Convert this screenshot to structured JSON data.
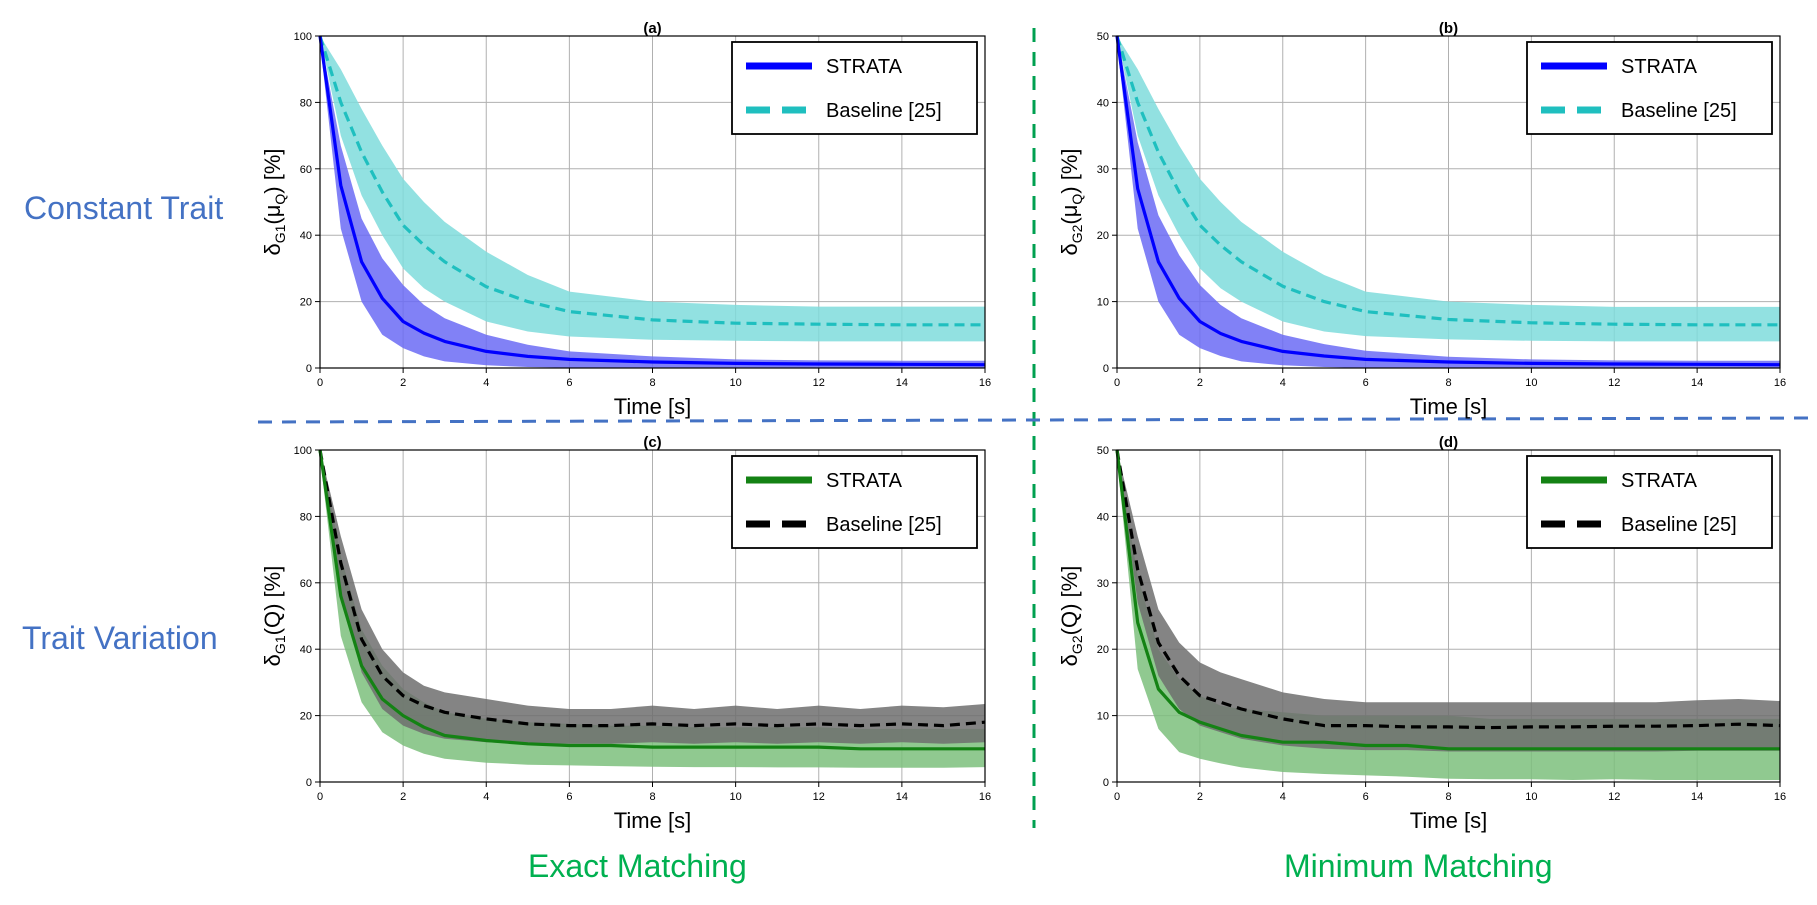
{
  "row_labels": [
    "Constant Trait",
    "Trait Variation"
  ],
  "column_labels": [
    "Exact Matching",
    "Minimum Matching"
  ],
  "colors": {
    "strata_blue": "#0000ff",
    "strata_blue_band": "#6b6bf5",
    "baseline_cyan": "#1fbfbf",
    "baseline_cyan_band": "#7fdcdc",
    "strata_green": "#148214",
    "strata_green_band": "#7dbf7d",
    "baseline_black": "#000000",
    "baseline_black_band": "#6e6e6e",
    "divider_green": "#00a050",
    "divider_blue": "#4472c4",
    "row_label": "#4472c4",
    "column_label": "#00b050"
  },
  "chart_data": [
    {
      "id": "a",
      "type": "line",
      "title": "(a)",
      "xlabel": "Time [s]",
      "ylabel": "δ_{G1}(μ_Q) [%]",
      "ylabel_parts": {
        "delta": "δ",
        "sub": "G1",
        "arg": "(μ",
        "arg_sub": "Q",
        "close": ")",
        "unit": " [%]"
      },
      "xlim": [
        0,
        16
      ],
      "ylim": [
        0,
        100
      ],
      "xticks": [
        0,
        2,
        4,
        6,
        8,
        10,
        12,
        14,
        16
      ],
      "yticks": [
        0,
        20,
        40,
        60,
        80,
        100
      ],
      "grid": true,
      "legend": "top-right",
      "x": [
        0,
        0.5,
        1,
        1.5,
        2,
        2.5,
        3,
        4,
        5,
        6,
        8,
        10,
        12,
        14,
        16
      ],
      "series": [
        {
          "name": "STRATA",
          "style": "solid",
          "color_key": "strata_blue",
          "band_key": "strata_blue_band",
          "mean": [
            100,
            55,
            32,
            21,
            14,
            10.5,
            8,
            5,
            3.5,
            2.6,
            1.8,
            1.4,
            1.2,
            1.1,
            1.0
          ],
          "lower": [
            98,
            42,
            20,
            10,
            6,
            3.5,
            2,
            0.8,
            0.3,
            0.1,
            0,
            0,
            0,
            0,
            0
          ],
          "upper": [
            100,
            67,
            45,
            33,
            25,
            19,
            15,
            10,
            7,
            5,
            3.5,
            2.6,
            2.3,
            2.2,
            2.2
          ]
        },
        {
          "name": "Baseline [25]",
          "style": "dashed",
          "color_key": "baseline_cyan",
          "band_key": "baseline_cyan_band",
          "mean": [
            100,
            80,
            65,
            53,
            43,
            37,
            32,
            24.5,
            20,
            17,
            14.5,
            13.5,
            13.2,
            13,
            13
          ],
          "lower": [
            100,
            70,
            52,
            40,
            30,
            24,
            20,
            14,
            11,
            9.5,
            8.5,
            8.2,
            8,
            8,
            8
          ],
          "upper": [
            100,
            90,
            78,
            67,
            57,
            50,
            44,
            35,
            28,
            23,
            20,
            19,
            18.5,
            18.5,
            18.5
          ]
        }
      ]
    },
    {
      "id": "b",
      "type": "line",
      "title": "(b)",
      "xlabel": "Time [s]",
      "ylabel": "δ_{G2}(μ_Q) [%]",
      "ylabel_parts": {
        "delta": "δ",
        "sub": "G2",
        "arg": "(μ",
        "arg_sub": "Q",
        "close": ")",
        "unit": " [%]"
      },
      "xlim": [
        0,
        16
      ],
      "ylim": [
        0,
        50
      ],
      "xticks": [
        0,
        2,
        4,
        6,
        8,
        10,
        12,
        14,
        16
      ],
      "yticks": [
        0,
        10,
        20,
        30,
        40,
        50
      ],
      "grid": true,
      "legend": "top-right",
      "x": [
        0,
        0.5,
        1,
        1.5,
        2,
        2.5,
        3,
        4,
        5,
        6,
        8,
        10,
        12,
        14,
        16
      ],
      "series": [
        {
          "name": "STRATA",
          "style": "solid",
          "color_key": "strata_blue",
          "band_key": "strata_blue_band",
          "mean": [
            50,
            27,
            16,
            10.5,
            7,
            5.2,
            4,
            2.5,
            1.8,
            1.3,
            0.9,
            0.7,
            0.6,
            0.55,
            0.5
          ],
          "lower": [
            49,
            21,
            10,
            5,
            3,
            1.8,
            1,
            0.4,
            0.15,
            0,
            0,
            0,
            0,
            0,
            0
          ],
          "upper": [
            50,
            34,
            23,
            17,
            12.5,
            9.5,
            7.5,
            5,
            3.6,
            2.6,
            1.7,
            1.3,
            1.15,
            1.1,
            1.1
          ]
        },
        {
          "name": "Baseline [25]",
          "style": "dashed",
          "color_key": "baseline_cyan",
          "band_key": "baseline_cyan_band",
          "mean": [
            50,
            40,
            32.5,
            26.5,
            21.5,
            18.5,
            16,
            12.3,
            10,
            8.5,
            7.3,
            6.8,
            6.6,
            6.5,
            6.5
          ],
          "lower": [
            50,
            35,
            26,
            20,
            15,
            12,
            10,
            7,
            5.5,
            4.8,
            4.3,
            4.1,
            4,
            4,
            4
          ],
          "upper": [
            50,
            45,
            39,
            33.5,
            28.5,
            25,
            22,
            17.5,
            14,
            11.5,
            10,
            9.5,
            9.2,
            9.2,
            9.2
          ]
        }
      ]
    },
    {
      "id": "c",
      "type": "line",
      "title": "(c)",
      "xlabel": "Time [s]",
      "ylabel": "δ_{G1}(Q) [%]",
      "ylabel_parts": {
        "delta": "δ",
        "sub": "G1",
        "arg": "(Q",
        "arg_sub": "",
        "close": ")",
        "unit": " [%]"
      },
      "xlim": [
        0,
        16
      ],
      "ylim": [
        0,
        100
      ],
      "xticks": [
        0,
        2,
        4,
        6,
        8,
        10,
        12,
        14,
        16
      ],
      "yticks": [
        0,
        20,
        40,
        60,
        80,
        100
      ],
      "grid": true,
      "legend": "top-right",
      "x": [
        0,
        0.5,
        1,
        1.5,
        2,
        2.5,
        3,
        4,
        5,
        6,
        7,
        8,
        9,
        10,
        11,
        12,
        13,
        14,
        15,
        16
      ],
      "series": [
        {
          "name": "STRATA",
          "style": "solid",
          "color_key": "strata_green",
          "band_key": "strata_green_band",
          "mean": [
            100,
            56,
            35,
            25,
            20,
            16.5,
            14,
            12.5,
            11.5,
            11,
            11,
            10.5,
            10.5,
            10.5,
            10.5,
            10.5,
            10,
            10,
            10,
            10
          ],
          "lower": [
            98,
            44,
            24,
            15,
            11,
            8.5,
            7,
            5.8,
            5.2,
            5,
            4.8,
            4.6,
            4.5,
            4.5,
            4.4,
            4.4,
            4.3,
            4.3,
            4.3,
            4.5
          ],
          "upper": [
            100,
            68,
            46,
            35,
            28,
            24,
            21,
            19,
            18,
            17.5,
            17,
            17,
            16.5,
            16.5,
            16.5,
            16.5,
            16,
            16,
            16,
            16
          ]
        },
        {
          "name": "Baseline [25]",
          "style": "dashed",
          "color_key": "baseline_black",
          "band_key": "baseline_black_band",
          "mean": [
            100,
            66,
            43,
            32,
            26,
            23,
            21,
            19,
            17.5,
            17,
            17,
            17.5,
            17,
            17.5,
            17,
            17.5,
            17,
            17.5,
            17,
            18
          ],
          "lower": [
            100,
            57,
            33,
            22,
            17,
            14.5,
            13,
            12,
            11.5,
            11.5,
            11.5,
            12,
            11.5,
            12,
            11.5,
            12,
            11.5,
            12,
            11.5,
            12
          ],
          "upper": [
            100,
            74,
            52,
            40,
            33,
            29,
            27,
            25,
            23,
            22,
            22,
            23,
            22,
            23,
            22,
            23,
            22,
            23,
            22.5,
            23.5
          ]
        }
      ]
    },
    {
      "id": "d",
      "type": "line",
      "title": "(d)",
      "xlabel": "Time [s]",
      "ylabel": "δ_{G2}(Q) [%]",
      "ylabel_parts": {
        "delta": "δ",
        "sub": "G2",
        "arg": "(Q",
        "arg_sub": "",
        "close": ")",
        "unit": " [%]"
      },
      "xlim": [
        0,
        16
      ],
      "ylim": [
        0,
        50
      ],
      "xticks": [
        0,
        2,
        4,
        6,
        8,
        10,
        12,
        14,
        16
      ],
      "yticks": [
        0,
        10,
        20,
        30,
        40,
        50
      ],
      "grid": true,
      "legend": "top-right",
      "x": [
        0,
        0.5,
        1,
        1.5,
        2,
        2.5,
        3,
        4,
        5,
        6,
        7,
        8,
        9,
        10,
        11,
        12,
        13,
        14,
        15,
        16
      ],
      "series": [
        {
          "name": "STRATA",
          "style": "solid",
          "color_key": "strata_green",
          "band_key": "strata_green_band",
          "mean": [
            50,
            24,
            14,
            10.5,
            9,
            8,
            7,
            6,
            6,
            5.5,
            5.5,
            5,
            5,
            5,
            5,
            5,
            5,
            5,
            5,
            5
          ],
          "lower": [
            49,
            17,
            8,
            4.5,
            3.5,
            2.8,
            2.2,
            1.5,
            1.2,
            1,
            0.8,
            0.5,
            0.4,
            0.4,
            0.3,
            0.4,
            0.3,
            0.3,
            0.3,
            0.3
          ],
          "upper": [
            50,
            31,
            20,
            15.5,
            13,
            11.5,
            11,
            10.5,
            10,
            10,
            10,
            10,
            9.5,
            9.5,
            9.5,
            9.5,
            9.5,
            9.5,
            9.5,
            9.5
          ]
        },
        {
          "name": "Baseline [25]",
          "style": "dashed",
          "color_key": "baseline_black",
          "band_key": "baseline_black_band",
          "mean": [
            50,
            32,
            21,
            16,
            13,
            12,
            11,
            9.5,
            8.5,
            8.5,
            8.3,
            8.3,
            8.2,
            8.3,
            8.3,
            8.4,
            8.4,
            8.5,
            8.7,
            8.5
          ],
          "lower": [
            50,
            27,
            16,
            11,
            8.5,
            7.5,
            6.5,
            5.5,
            5,
            4.8,
            4.8,
            4.6,
            4.6,
            4.6,
            4.6,
            4.6,
            4.6,
            4.7,
            4.7,
            4.7
          ],
          "upper": [
            50,
            37,
            26,
            21,
            18,
            16.5,
            15.5,
            13.5,
            12.5,
            12,
            12,
            12,
            12,
            12,
            12,
            12,
            12,
            12.3,
            12.5,
            12.2
          ]
        }
      ]
    }
  ]
}
